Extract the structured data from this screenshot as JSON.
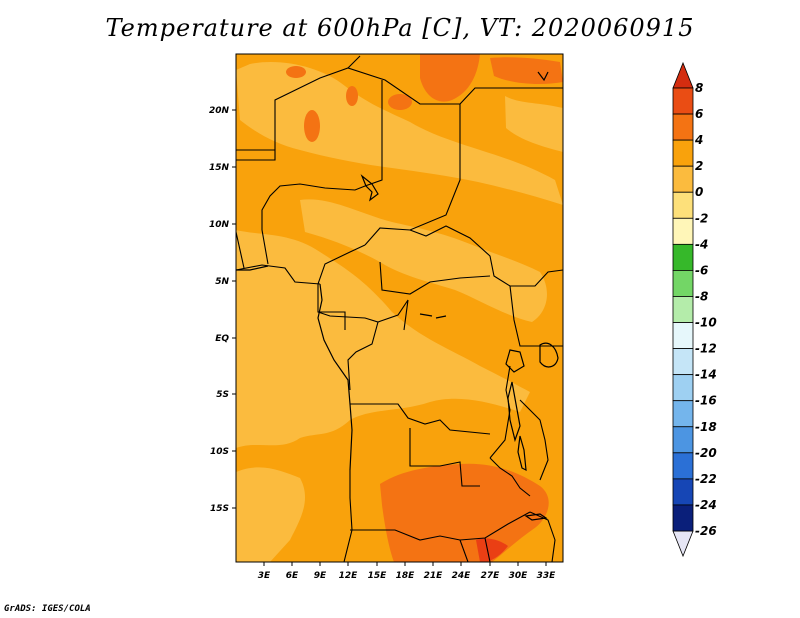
{
  "title": "Temperature at 600hPa [C], VT: 2020060915",
  "footer": "GrADS: IGES/COLA",
  "map": {
    "lat_labels": [
      "20N",
      "15N",
      "10N",
      "5N",
      "EQ",
      "5S",
      "10S",
      "15S"
    ],
    "lon_labels": [
      "3E",
      "6E",
      "9E",
      "12E",
      "15E",
      "18E",
      "21E",
      "24E",
      "27E",
      "30E",
      "33E"
    ],
    "fill_colors": {
      "band_0_2": "#fbbb3e",
      "band_2_4": "#f9a20c",
      "band_4_6": "#f47313",
      "band_6_8": "#ea3f14",
      "border": "#000000"
    }
  },
  "colorbar": {
    "labels": [
      "8",
      "6",
      "4",
      "2",
      "0",
      "-2",
      "-4",
      "-6",
      "-8",
      "-10",
      "-12",
      "-14",
      "-16",
      "-18",
      "-20",
      "-22",
      "-24",
      "-26"
    ],
    "colors": [
      "#d42d10",
      "#ea4d14",
      "#f47313",
      "#f9a20c",
      "#fbbb3e",
      "#fde07a",
      "#fff6b8",
      "#36b82a",
      "#73d666",
      "#b4ecaa",
      "#e6f7fb",
      "#c5e5f7",
      "#9ed0f2",
      "#74b5ec",
      "#4c95e2",
      "#2b70d6",
      "#1646b5",
      "#0a1f7a",
      "#e6e6f5"
    ]
  }
}
